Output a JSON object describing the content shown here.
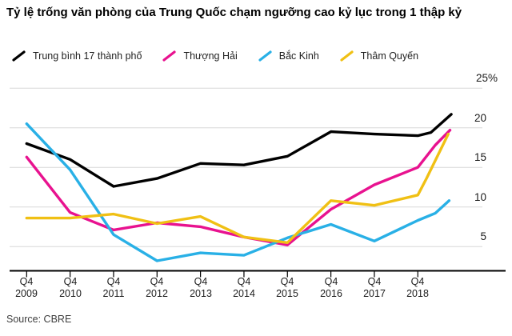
{
  "title": "Tỷ lệ trống văn phòng của Trung Quốc chạm ngưỡng cao kỷ lục trong 1 thập kỷ",
  "source": "Source: CBRE",
  "legend": [
    {
      "label": "Trung bình 17 thành phố",
      "color": "#000000"
    },
    {
      "label": "Thượng Hải",
      "color": "#e8128f"
    },
    {
      "label": "Bắc Kinh",
      "color": "#29b0e6"
    },
    {
      "label": "Thâm Quyến",
      "color": "#f0c014"
    }
  ],
  "chart_data": {
    "type": "line",
    "title": "Tỷ lệ trống văn phòng của Trung Quốc chạm ngưỡng cao kỷ lục trong 1 thập kỷ",
    "source": "Source: CBRE",
    "x_tick_prefix": "Q4",
    "categories": [
      "2009",
      "2010",
      "2011",
      "2012",
      "2013",
      "2014",
      "2015",
      "2016",
      "2017",
      "2018"
    ],
    "y_ticks": [
      {
        "label": "25%",
        "value": 25
      },
      {
        "label": "20",
        "value": 20
      },
      {
        "label": "15",
        "value": 15
      },
      {
        "label": "10",
        "value": 10
      },
      {
        "label": "5",
        "value": 5
      }
    ],
    "ylim": [
      1.8,
      26.5
    ],
    "grid": "horizontal",
    "legend_position": "top",
    "unit": "%",
    "series": [
      {
        "name": "Trung bình 17 thành phố",
        "color": "#000000",
        "x": [
          0,
          1,
          2,
          3,
          4,
          5,
          6,
          7,
          8,
          9,
          9.3,
          9.77
        ],
        "values": [
          18.0,
          16.0,
          12.6,
          13.6,
          15.5,
          15.3,
          16.4,
          19.5,
          19.2,
          19.0,
          19.4,
          21.7
        ]
      },
      {
        "name": "Thượng Hải",
        "color": "#e8128f",
        "x": [
          0,
          1,
          2,
          3,
          4,
          5,
          6,
          7,
          8,
          9,
          9.4,
          9.74
        ],
        "values": [
          16.3,
          9.3,
          7.1,
          8.0,
          7.5,
          6.2,
          5.2,
          9.7,
          12.8,
          15.0,
          17.8,
          19.7
        ]
      },
      {
        "name": "Bắc Kinh",
        "color": "#29b0e6",
        "x": [
          0,
          1,
          2,
          3,
          4,
          5,
          6,
          7,
          8,
          9,
          9.4,
          9.72
        ],
        "values": [
          20.5,
          14.7,
          6.5,
          3.2,
          4.2,
          3.9,
          6.1,
          7.8,
          5.7,
          8.3,
          9.2,
          10.8
        ]
      },
      {
        "name": "Thâm Quyến",
        "color": "#f0c014",
        "x": [
          0,
          1,
          2,
          3,
          4,
          5,
          6,
          7,
          8,
          9,
          9.2,
          9.7
        ],
        "values": [
          8.6,
          8.6,
          9.1,
          7.9,
          8.8,
          6.2,
          5.5,
          10.8,
          10.2,
          11.5,
          13.6,
          19.2
        ]
      }
    ]
  }
}
